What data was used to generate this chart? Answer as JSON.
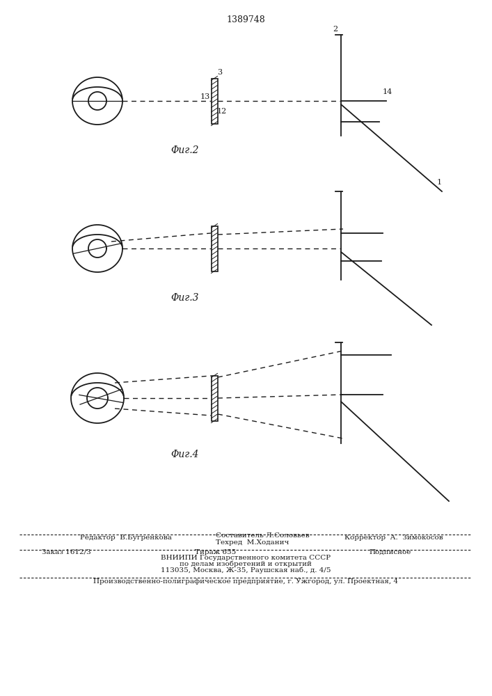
{
  "title": "1389748",
  "fig2_label": "Φиг.2",
  "fig3_label": "Φиг.3",
  "fig4_label": "Φиг.4",
  "bg_color": "#ffffff",
  "line_color": "#1a1a1a",
  "dashed_color": "#1a1a1a",
  "font_size_title": 9,
  "font_size_label": 10,
  "font_size_num": 8,
  "footer_editor": "Редактор  В.Бугренкова",
  "footer_comp": "Составитель Л.Соловьев",
  "footer_corr": "Корректор  А.  Зимокосов",
  "footer_tech": "Техред  М.Ходанич",
  "footer_order": "Заказ 1612/3",
  "footer_tirazh": "Тираж 655",
  "footer_podp": "Подписное",
  "footer_vniip1": "ВНИИПИ Государственного комитета СССР",
  "footer_vniip2": "по делам изобретений и открытий",
  "footer_vniip3": "113035, Москва, Ж-35, Раушская наб., д. 4/5",
  "footer_prod": "Производственно-полиграфическое предприятие, г. Ужгород, ул. Проектная, 4"
}
